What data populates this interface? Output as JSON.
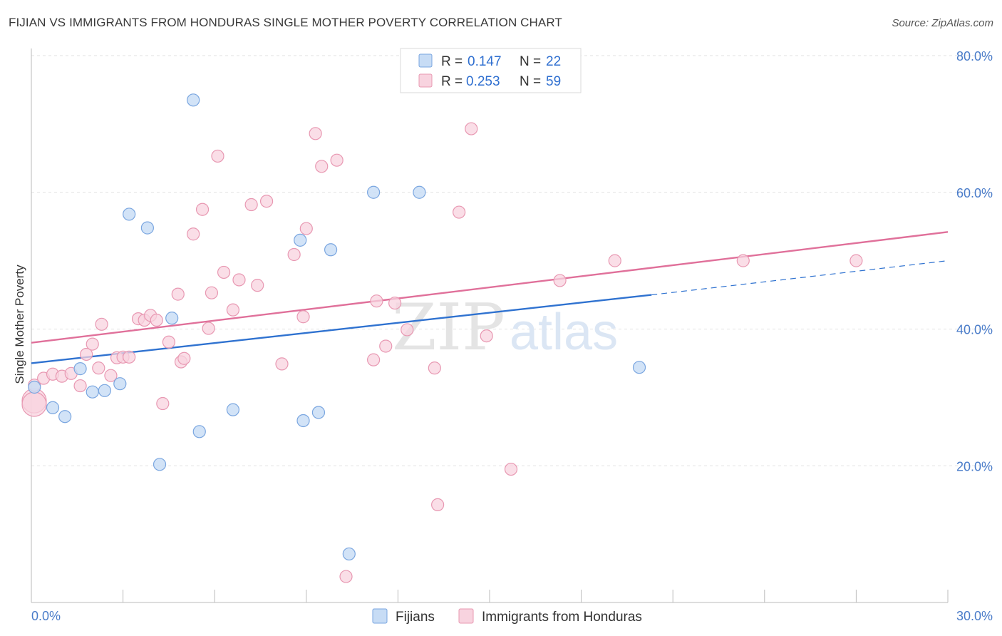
{
  "title": "FIJIAN VS IMMIGRANTS FROM HONDURAS SINGLE MOTHER POVERTY CORRELATION CHART",
  "source": "Source: ZipAtlas.com",
  "watermark": {
    "zip": "ZIP",
    "atlas": "atlas"
  },
  "legend_top": {
    "rows": [
      {
        "r_label": "R =",
        "r_value": "0.147",
        "n_label": "N =",
        "n_value": "22"
      },
      {
        "r_label": "R =",
        "r_value": "0.253",
        "n_label": "N =",
        "n_value": "59"
      }
    ]
  },
  "legend_bottom": {
    "items": [
      "Fijians",
      "Immigrants from Honduras"
    ]
  },
  "chart_data": {
    "type": "scatter",
    "title": "FIJIAN VS IMMIGRANTS FROM HONDURAS SINGLE MOTHER POVERTY CORRELATION CHART",
    "xlabel": "",
    "ylabel": "Single Mother Poverty",
    "xlim": [
      0,
      30
    ],
    "ylim": [
      0,
      80
    ],
    "x_tick_labels": [
      "0.0%",
      "30.0%"
    ],
    "y_ticks": [
      20,
      40,
      60,
      80
    ],
    "y_tick_labels": [
      "20.0%",
      "40.0%",
      "60.0%",
      "80.0%"
    ],
    "grid": true,
    "legend_position": "top-center",
    "colors": {
      "fijians_fill": "#c7dcf5",
      "fijians_stroke": "#7aa6e0",
      "fijians_line": "#2f72d0",
      "honduras_fill": "#f8d3df",
      "honduras_stroke": "#e898b2",
      "honduras_line": "#e0709a",
      "axis_text": "#4a7cc9",
      "grid": "#e2e2e2"
    },
    "series": [
      {
        "name": "Fijians",
        "R": 0.147,
        "N": 22,
        "trend": {
          "x0": 0,
          "y0": 35.0,
          "x1": 20.3,
          "y1": 45.0,
          "dashed_to_x": 30,
          "dashed_to_y": 50.0
        },
        "points": [
          [
            0.1,
            31.5
          ],
          [
            0.7,
            28.5
          ],
          [
            1.1,
            27.2
          ],
          [
            1.6,
            34.2
          ],
          [
            2.0,
            30.8
          ],
          [
            2.4,
            31.0
          ],
          [
            2.9,
            32.0
          ],
          [
            3.2,
            56.8
          ],
          [
            3.8,
            54.8
          ],
          [
            4.2,
            20.2
          ],
          [
            4.6,
            41.6
          ],
          [
            5.3,
            73.5
          ],
          [
            5.5,
            25.0
          ],
          [
            6.6,
            28.2
          ],
          [
            8.8,
            53.0
          ],
          [
            8.9,
            26.6
          ],
          [
            9.4,
            27.8
          ],
          [
            9.8,
            51.6
          ],
          [
            10.4,
            7.1
          ],
          [
            11.2,
            60.0
          ],
          [
            12.7,
            60.0
          ],
          [
            19.9,
            34.4
          ]
        ]
      },
      {
        "name": "Immigrants from Honduras",
        "R": 0.253,
        "N": 59,
        "trend": {
          "x0": 0,
          "y0": 38.0,
          "x1": 30,
          "y1": 54.2
        },
        "points": [
          [
            0.0,
            29.5
          ],
          [
            0.1,
            31.8
          ],
          [
            0.4,
            32.8
          ],
          [
            0.7,
            33.4
          ],
          [
            1.0,
            33.1
          ],
          [
            1.3,
            33.5
          ],
          [
            1.6,
            31.7
          ],
          [
            1.8,
            36.3
          ],
          [
            2.0,
            37.8
          ],
          [
            2.2,
            34.3
          ],
          [
            2.3,
            40.7
          ],
          [
            2.6,
            33.2
          ],
          [
            2.8,
            35.8
          ],
          [
            3.0,
            35.9
          ],
          [
            3.2,
            35.9
          ],
          [
            3.5,
            41.5
          ],
          [
            3.7,
            41.3
          ],
          [
            3.9,
            42.0
          ],
          [
            4.1,
            41.3
          ],
          [
            4.3,
            29.1
          ],
          [
            4.5,
            38.1
          ],
          [
            4.8,
            45.1
          ],
          [
            4.9,
            35.2
          ],
          [
            5.0,
            35.7
          ],
          [
            5.3,
            53.9
          ],
          [
            5.6,
            57.5
          ],
          [
            5.8,
            40.1
          ],
          [
            5.9,
            45.3
          ],
          [
            6.1,
            65.3
          ],
          [
            6.3,
            48.3
          ],
          [
            6.6,
            42.8
          ],
          [
            6.8,
            47.2
          ],
          [
            7.2,
            58.2
          ],
          [
            7.4,
            46.4
          ],
          [
            7.7,
            58.7
          ],
          [
            8.2,
            34.9
          ],
          [
            8.6,
            50.9
          ],
          [
            8.9,
            41.8
          ],
          [
            9.0,
            54.7
          ],
          [
            9.3,
            68.6
          ],
          [
            9.5,
            63.8
          ],
          [
            10.0,
            64.7
          ],
          [
            10.3,
            3.8
          ],
          [
            11.2,
            35.5
          ],
          [
            11.3,
            44.1
          ],
          [
            11.6,
            37.5
          ],
          [
            11.9,
            43.8
          ],
          [
            12.3,
            39.9
          ],
          [
            13.2,
            34.3
          ],
          [
            13.3,
            14.3
          ],
          [
            14.0,
            57.1
          ],
          [
            14.4,
            69.3
          ],
          [
            14.9,
            39.0
          ],
          [
            15.7,
            19.5
          ],
          [
            17.3,
            47.1
          ],
          [
            19.1,
            50.0
          ],
          [
            23.3,
            50.0
          ],
          [
            27.0,
            50.0
          ],
          [
            0.0,
            29.0
          ]
        ]
      }
    ]
  }
}
